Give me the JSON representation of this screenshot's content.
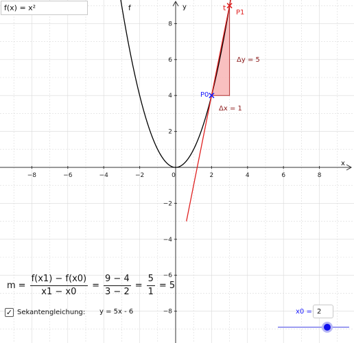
{
  "function_input": {
    "text": "f(x) = x²"
  },
  "graph": {
    "x_axis_label": "x",
    "y_axis_label": "y",
    "x_ticks": [
      "−8",
      "−6",
      "−4",
      "−2",
      "0",
      "2",
      "4",
      "6",
      "8"
    ],
    "y_ticks": [
      "8",
      "6",
      "4",
      "2",
      "−2",
      "−4",
      "−6",
      "−8"
    ],
    "function_label": "f",
    "secant_label": "t",
    "point0_label": "P0",
    "point1_label": "P1",
    "delta_y_label": "Δy = 5",
    "delta_x_label": "Δx = 1",
    "colors": {
      "axes": "#333333",
      "grid": "#d9d9d9",
      "function": "#000000",
      "secant": "#e02020",
      "triangle_fill": "#f7b0b0",
      "triangle_stroke": "#b03030",
      "point0": "#1a1aff",
      "point1": "#e02020",
      "labels_dark_red": "#8b1a1a"
    }
  },
  "chart_data": {
    "type": "line",
    "xlim": [
      -9.7,
      9.6
    ],
    "ylim": [
      -9.7,
      9.7
    ],
    "grid": true,
    "series": [
      {
        "name": "f",
        "formula": "x^2"
      },
      {
        "name": "t",
        "formula": "5x - 6"
      }
    ],
    "points": [
      {
        "name": "P0",
        "x": 2,
        "y": 4
      },
      {
        "name": "P1",
        "x": 3,
        "y": 9
      }
    ],
    "slope_triangle": {
      "x0": 2,
      "y0": 4,
      "dx": 1,
      "dy": 5
    }
  },
  "formula": {
    "m_label": "m",
    "num1": "f(x1) − f(x0)",
    "den1": "x1 − x0",
    "num2": "9 − 4",
    "den2": "3 − 2",
    "num3": "5",
    "den3": "1",
    "result": "5",
    "equals": "="
  },
  "sekante": {
    "checked": true,
    "check_mark": "✓",
    "label": "Sekantengleichung:",
    "equation": "y = 5x - 6"
  },
  "slider": {
    "label": "x0 = ",
    "value": "2"
  }
}
